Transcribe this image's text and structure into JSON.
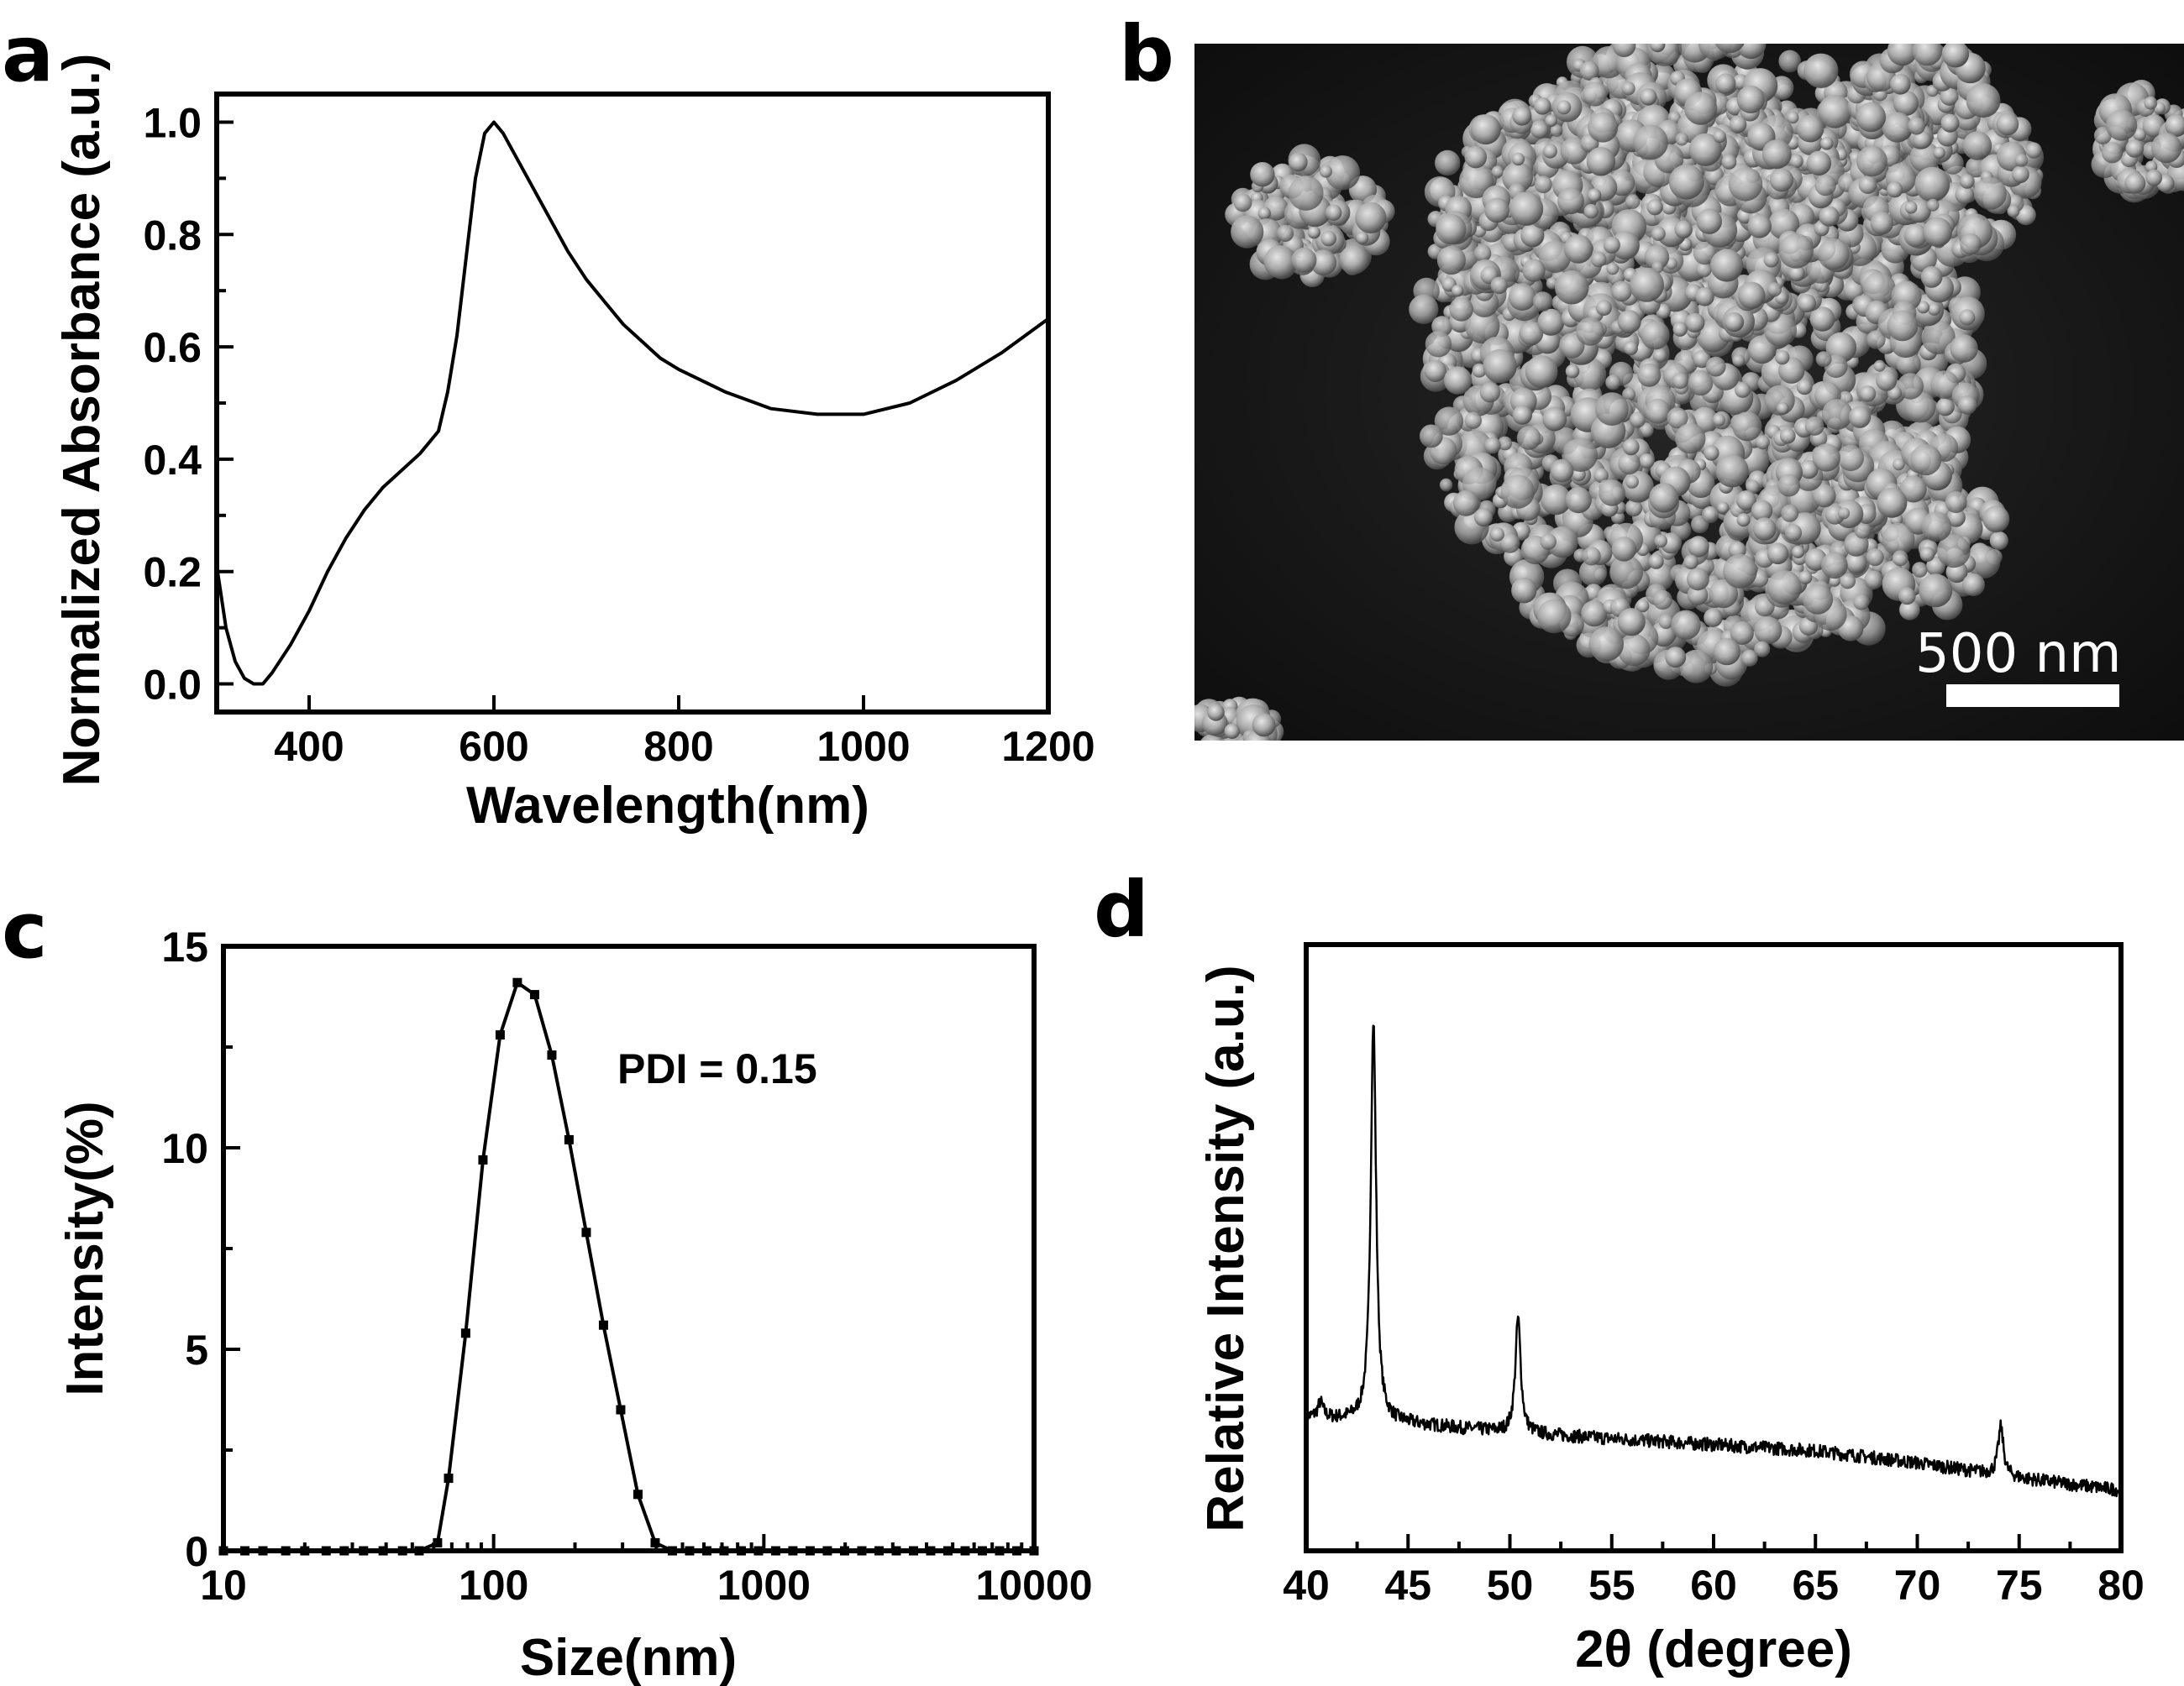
{
  "panels": {
    "a": {
      "letter": "a"
    },
    "b": {
      "letter": "b",
      "scale_bar": "500  nm"
    },
    "c": {
      "letter": "c"
    },
    "d": {
      "letter": "d"
    }
  },
  "chart_data": [
    {
      "id": "a",
      "type": "line",
      "xlabel": "Wavelength(nm)",
      "ylabel": "Normalized Absorbance (a.u.)",
      "xlim": [
        300,
        1200
      ],
      "ylim": [
        -0.05,
        1.05
      ],
      "xticks": [
        400,
        600,
        800,
        1000,
        1200
      ],
      "yticks": [
        0.0,
        0.2,
        0.4,
        0.6,
        0.8,
        1.0
      ],
      "x": [
        300,
        310,
        320,
        330,
        340,
        350,
        360,
        380,
        400,
        420,
        440,
        460,
        480,
        500,
        520,
        540,
        550,
        560,
        570,
        580,
        590,
        600,
        610,
        620,
        640,
        660,
        680,
        700,
        720,
        740,
        760,
        780,
        800,
        850,
        900,
        950,
        1000,
        1050,
        1100,
        1150,
        1200
      ],
      "y": [
        0.21,
        0.1,
        0.04,
        0.01,
        0.0,
        0.0,
        0.02,
        0.07,
        0.13,
        0.2,
        0.26,
        0.31,
        0.35,
        0.38,
        0.41,
        0.45,
        0.52,
        0.62,
        0.76,
        0.9,
        0.98,
        1.0,
        0.98,
        0.95,
        0.89,
        0.83,
        0.77,
        0.72,
        0.68,
        0.64,
        0.61,
        0.58,
        0.56,
        0.52,
        0.49,
        0.48,
        0.48,
        0.5,
        0.54,
        0.59,
        0.65
      ]
    },
    {
      "id": "c",
      "type": "line",
      "xlabel": "Size(nm)",
      "ylabel": "Intensity(%)",
      "xscale": "log",
      "xlim": [
        10,
        10000
      ],
      "ylim": [
        0,
        15
      ],
      "xticks": [
        10,
        100,
        1000,
        10000
      ],
      "yticks": [
        0,
        5,
        10,
        15
      ],
      "annotation": "PDI = 0.15",
      "markers": "square",
      "x": [
        10,
        12,
        14,
        17,
        20,
        24,
        28,
        33,
        39,
        46,
        53,
        62,
        68.1,
        78.8,
        91.3,
        105.7,
        122.4,
        141.8,
        164.2,
        190.1,
        220.2,
        255.0,
        295.3,
        342.0,
        396.1,
        458.7,
        531.2,
        615.1,
        712.4,
        825.0,
        955.4,
        1106,
        1281,
        1484,
        1718,
        1990,
        2305,
        2669,
        3091,
        3580,
        4145,
        4801,
        5560,
        6439,
        7456,
        8635,
        10000
      ],
      "y": [
        0,
        0,
        0,
        0,
        0,
        0,
        0,
        0,
        0,
        0,
        0,
        0.2,
        1.8,
        5.4,
        9.7,
        12.8,
        14.1,
        13.8,
        12.3,
        10.2,
        7.9,
        5.6,
        3.5,
        1.4,
        0.2,
        0,
        0,
        0,
        0,
        0,
        0,
        0,
        0,
        0,
        0,
        0,
        0,
        0,
        0,
        0,
        0,
        0,
        0,
        0,
        0,
        0,
        0
      ]
    },
    {
      "id": "d",
      "type": "line",
      "xlabel": "2θ (degree)",
      "ylabel": "Relative Intensity (a.u.)",
      "xlim": [
        40,
        80
      ],
      "xticks": [
        40,
        45,
        50,
        55,
        60,
        65,
        70,
        75,
        80
      ],
      "ylim": [
        0,
        100
      ],
      "y_tick_labels": "none",
      "peaks": [
        {
          "x": 40.7,
          "height": 2.5
        },
        {
          "x": 43.3,
          "height": 66
        },
        {
          "x": 50.4,
          "height": 19
        },
        {
          "x": 74.1,
          "height": 8
        }
      ],
      "baseline": {
        "x": [
          40,
          45,
          50,
          55,
          60,
          65,
          70,
          75,
          80
        ],
        "y": [
          22,
          21,
          19.5,
          18.5,
          17.5,
          16.5,
          14.5,
          12,
          10
        ]
      }
    }
  ]
}
